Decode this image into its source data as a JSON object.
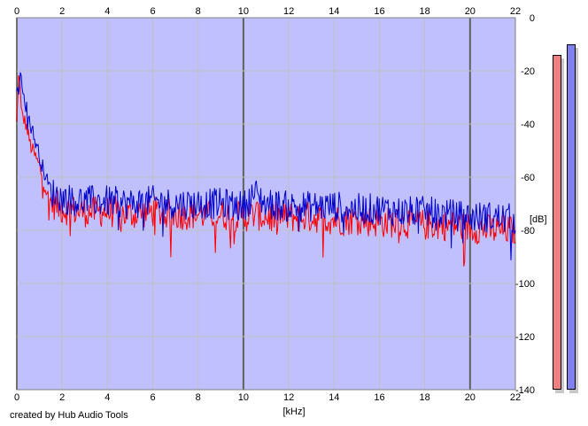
{
  "credit": "created by Hub Audio Tools",
  "colors": {
    "background": "#ffffff",
    "plot_fill": "#c0c0ff",
    "grid": "#c0c0c0",
    "grid_major": "#808080",
    "channel_left": "#ff0000",
    "channel_right": "#0000cc",
    "meter_left": "#f08080",
    "meter_right": "#8080f0"
  },
  "chart_data": {
    "type": "line",
    "title": "",
    "xlabel": "[kHz]",
    "ylabel": "[dB]",
    "xlim": [
      0,
      22
    ],
    "ylim": [
      -140,
      0
    ],
    "x_ticks": [
      "0",
      "2",
      "4",
      "6",
      "8",
      "10",
      "12",
      "14",
      "16",
      "18",
      "20",
      "22"
    ],
    "y_ticks": [
      "0",
      "-20",
      "-40",
      "-60",
      "-80",
      "-100",
      "-120",
      "-140"
    ],
    "grid": true,
    "x_ticks_top": true,
    "series": [
      {
        "color": "#ff0000",
        "x": [
          0,
          0.1,
          0.2,
          0.4,
          0.6,
          0.8,
          1.0,
          1.2,
          1.4,
          1.6,
          2,
          3,
          4,
          5,
          6,
          7,
          8,
          9,
          10,
          10.5,
          11,
          12,
          13,
          14,
          15,
          16,
          17,
          18,
          19,
          20,
          21,
          22
        ],
        "y": [
          -40,
          -18,
          -36,
          -40,
          -48,
          -52,
          -56,
          -62,
          -68,
          -70,
          -72,
          -73,
          -73,
          -74,
          -73,
          -74,
          -74,
          -74,
          -75,
          -74,
          -75,
          -75,
          -75,
          -76,
          -76,
          -77,
          -77,
          -78,
          -78,
          -79,
          -80,
          -80
        ]
      },
      {
        "color": "#0000cc",
        "x": [
          0,
          0.1,
          0.2,
          0.4,
          0.6,
          0.8,
          1.0,
          1.2,
          1.4,
          1.6,
          2,
          3,
          4,
          5,
          6,
          7,
          8,
          9,
          10,
          10.5,
          11,
          12,
          13,
          14,
          15,
          16,
          17,
          18,
          19,
          20,
          21,
          22
        ],
        "y": [
          -30,
          -25,
          -22,
          -33,
          -40,
          -46,
          -52,
          -58,
          -63,
          -66,
          -68,
          -69,
          -69,
          -70,
          -69,
          -70,
          -70,
          -70,
          -71,
          -66,
          -70,
          -71,
          -71,
          -71,
          -72,
          -72,
          -73,
          -73,
          -74,
          -75,
          -75,
          -76
        ]
      }
    ],
    "level_meters": [
      {
        "color": "#f08080",
        "top_db": -14
      },
      {
        "color": "#8080f0",
        "top_db": -10
      }
    ]
  }
}
